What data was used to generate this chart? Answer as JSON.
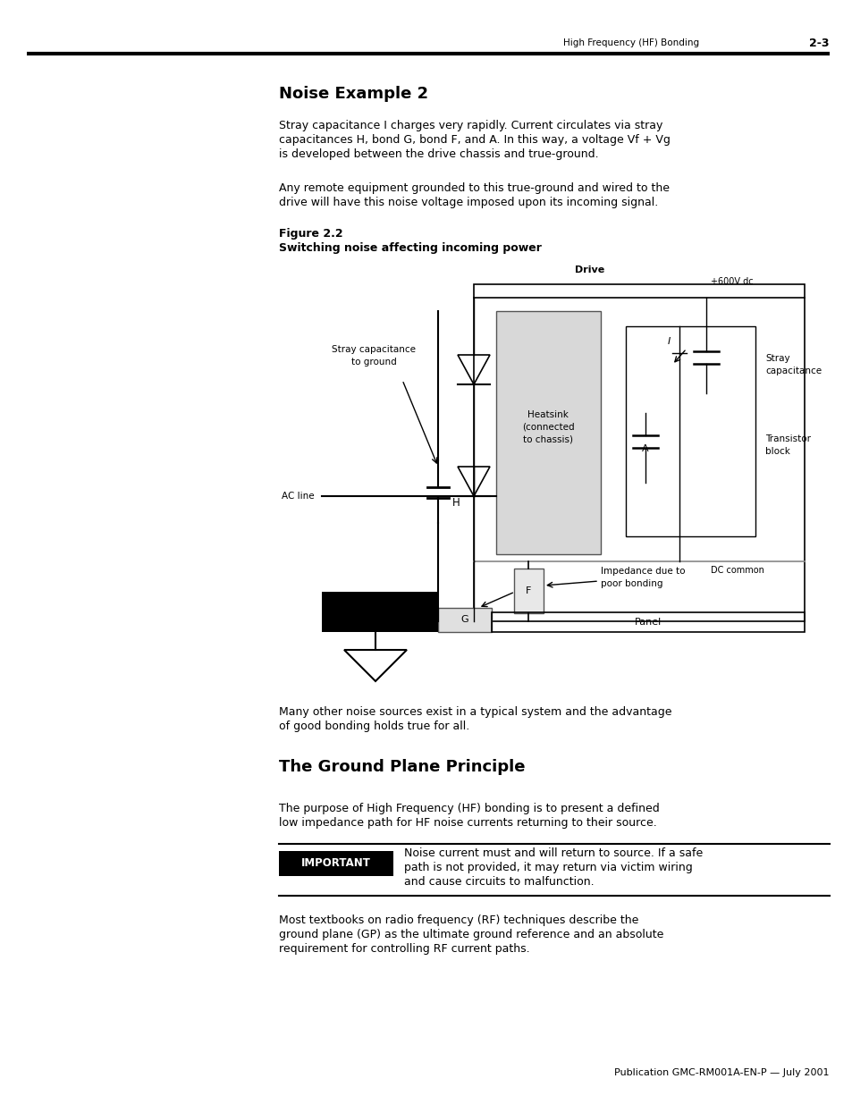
{
  "page_header_left": "High Frequency (HF) Bonding",
  "page_header_right": "2-3",
  "section1_title": "Noise Example 2",
  "section1_para1_lines": [
    "Stray capacitance I charges very rapidly. Current circulates via stray",
    "capacitances H, bond G, bond F, and A. In this way, a voltage Vf + Vg",
    "is developed between the drive chassis and true-ground."
  ],
  "section1_para2_lines": [
    "Any remote equipment grounded to this true-ground and wired to the",
    "drive will have this noise voltage imposed upon its incoming signal."
  ],
  "figure_label": "Figure 2.2",
  "figure_caption": "Switching noise affecting incoming power",
  "section2_title": "The Ground Plane Principle",
  "section2_para1_lines": [
    "The purpose of High Frequency (HF) bonding is to present a defined",
    "low impedance path for HF noise currents returning to their source."
  ],
  "important_label": "IMPORTANT",
  "important_text_lines": [
    "Noise current must and will return to source. If a safe",
    "path is not provided, it may return via victim wiring",
    "and cause circuits to malfunction."
  ],
  "section2_para2_lines": [
    "Most textbooks on radio frequency (RF) techniques describe the",
    "ground plane (GP) as the ultimate ground reference and an absolute",
    "requirement for controlling RF current paths."
  ],
  "footer_text": "Publication GMC-RM001A-EN-P — July 2001",
  "bg_color": "#ffffff",
  "text_color": "#000000"
}
